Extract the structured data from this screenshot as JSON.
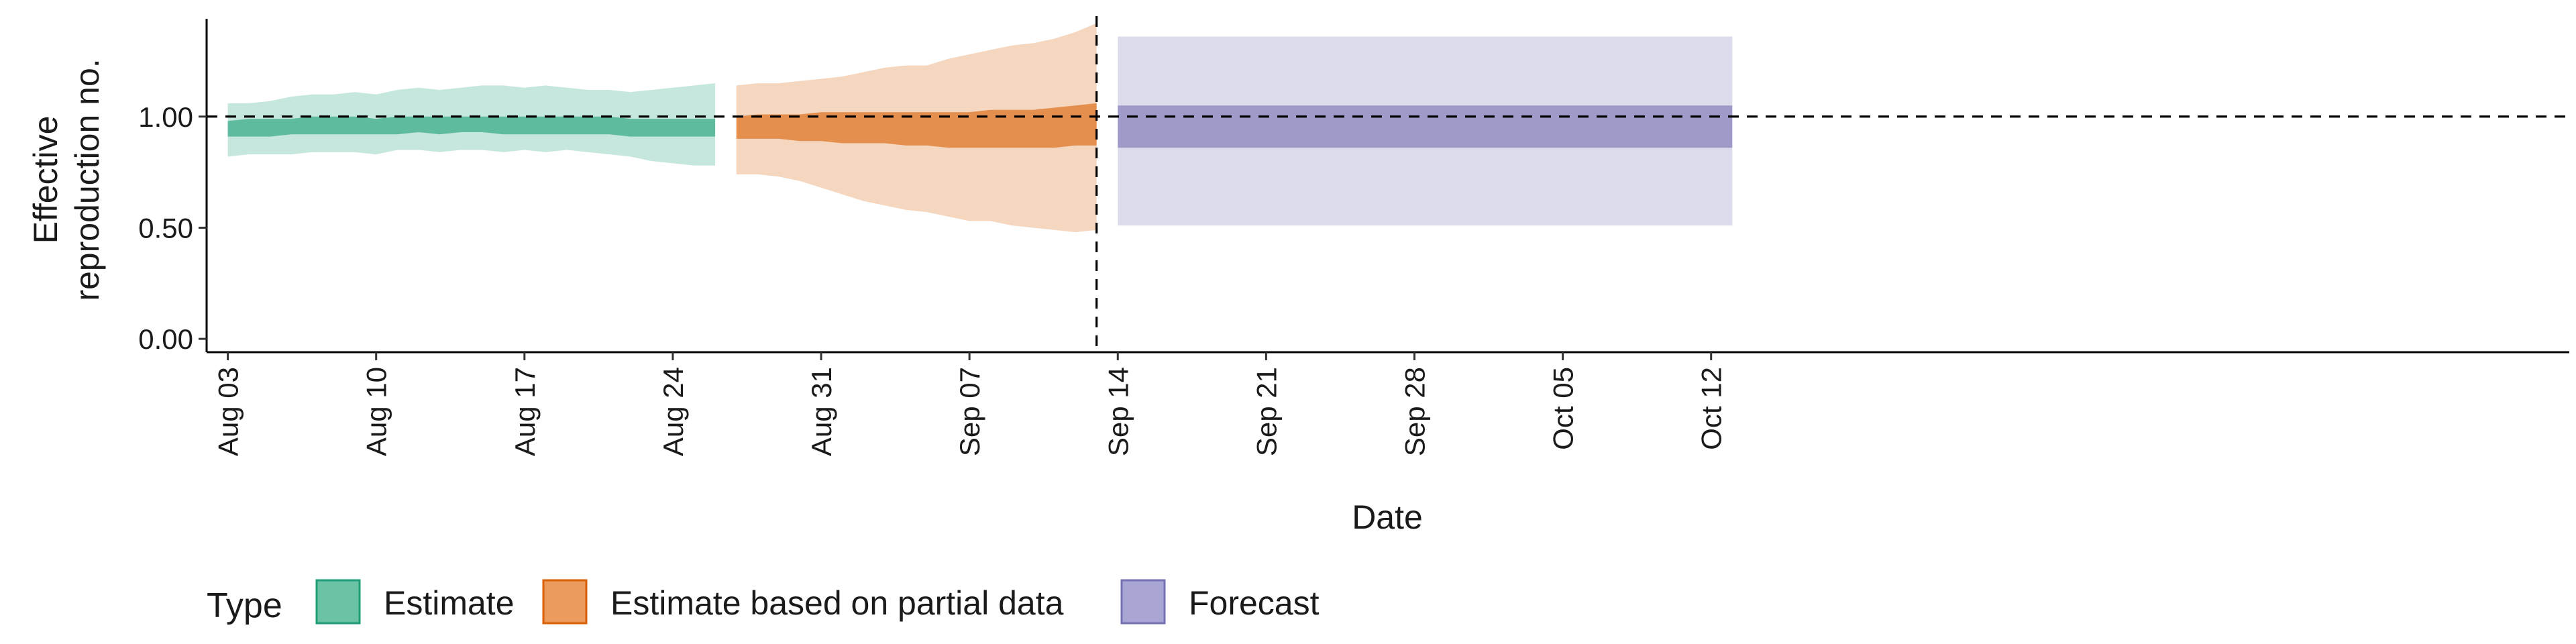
{
  "chart_data": {
    "type": "area",
    "title": "",
    "xlabel": "Date",
    "ylabel_lines": [
      "Effective",
      "reproduction no."
    ],
    "ylim": [
      -0.06,
      1.44
    ],
    "xlim": [
      -1.0,
      110.5
    ],
    "yticks": [
      {
        "v": 0.0,
        "label": "0.00"
      },
      {
        "v": 0.5,
        "label": "0.50"
      },
      {
        "v": 1.0,
        "label": "1.00"
      }
    ],
    "xticks": [
      {
        "day": 0,
        "label": "Aug 03"
      },
      {
        "day": 7,
        "label": "Aug 10"
      },
      {
        "day": 14,
        "label": "Aug 17"
      },
      {
        "day": 21,
        "label": "Aug 24"
      },
      {
        "day": 28,
        "label": "Aug 31"
      },
      {
        "day": 35,
        "label": "Sep 07"
      },
      {
        "day": 42,
        "label": "Sep 14"
      },
      {
        "day": 49,
        "label": "Sep 21"
      },
      {
        "day": 56,
        "label": "Sep 28"
      },
      {
        "day": 63,
        "label": "Oct 05"
      },
      {
        "day": 70,
        "label": "Oct 12"
      }
    ],
    "reference_line_y": 1.0,
    "forecast_start_day": 41,
    "legend": {
      "title": "Type",
      "position": "bottom-left",
      "items": [
        {
          "label": "Estimate",
          "fill": "#6cc2a4",
          "stroke": "#1b9e77"
        },
        {
          "label": "Estimate based on partial data",
          "fill": "#eb9b5e",
          "stroke": "#d95f02"
        },
        {
          "label": "Forecast",
          "fill": "#aaa6d4",
          "stroke": "#7570b3"
        }
      ]
    },
    "series": [
      {
        "name": "Estimate",
        "color": "#1b9e77",
        "outer_opacity": 0.25,
        "inner_opacity": 0.6,
        "x": [
          0,
          1,
          2,
          3,
          4,
          5,
          6,
          7,
          8,
          9,
          10,
          11,
          12,
          13,
          14,
          15,
          16,
          17,
          18,
          19,
          20,
          21,
          22,
          23
        ],
        "outer_lower": [
          0.82,
          0.83,
          0.83,
          0.83,
          0.84,
          0.84,
          0.84,
          0.83,
          0.85,
          0.85,
          0.84,
          0.85,
          0.85,
          0.84,
          0.85,
          0.84,
          0.85,
          0.84,
          0.83,
          0.82,
          0.8,
          0.79,
          0.78,
          0.78
        ],
        "outer_upper": [
          1.06,
          1.06,
          1.07,
          1.09,
          1.1,
          1.1,
          1.11,
          1.1,
          1.12,
          1.13,
          1.12,
          1.13,
          1.14,
          1.14,
          1.13,
          1.14,
          1.13,
          1.12,
          1.12,
          1.11,
          1.12,
          1.13,
          1.14,
          1.15
        ],
        "inner_lower": [
          0.91,
          0.91,
          0.91,
          0.92,
          0.92,
          0.92,
          0.92,
          0.92,
          0.92,
          0.93,
          0.92,
          0.93,
          0.93,
          0.92,
          0.92,
          0.92,
          0.92,
          0.92,
          0.92,
          0.91,
          0.91,
          0.91,
          0.91,
          0.91
        ],
        "inner_upper": [
          0.98,
          0.99,
          0.99,
          0.99,
          1.0,
          1.0,
          1.0,
          0.99,
          1.0,
          1.0,
          1.0,
          1.0,
          1.0,
          1.0,
          1.0,
          1.0,
          1.0,
          1.0,
          1.0,
          0.99,
          0.99,
          0.99,
          0.99,
          0.99
        ]
      },
      {
        "name": "Estimate based on partial data",
        "color": "#d95f02",
        "outer_opacity": 0.25,
        "inner_opacity": 0.6,
        "x": [
          24,
          25,
          26,
          27,
          28,
          29,
          30,
          31,
          32,
          33,
          34,
          35,
          36,
          37,
          38,
          39,
          40,
          41
        ],
        "outer_lower": [
          0.74,
          0.74,
          0.73,
          0.71,
          0.68,
          0.65,
          0.62,
          0.6,
          0.58,
          0.57,
          0.55,
          0.53,
          0.53,
          0.51,
          0.5,
          0.49,
          0.48,
          0.49
        ],
        "outer_upper": [
          1.14,
          1.15,
          1.15,
          1.16,
          1.17,
          1.18,
          1.2,
          1.22,
          1.23,
          1.23,
          1.26,
          1.28,
          1.3,
          1.32,
          1.33,
          1.35,
          1.38,
          1.42
        ],
        "inner_lower": [
          0.9,
          0.9,
          0.9,
          0.89,
          0.89,
          0.88,
          0.88,
          0.88,
          0.87,
          0.87,
          0.86,
          0.86,
          0.86,
          0.86,
          0.86,
          0.86,
          0.87,
          0.87
        ],
        "inner_upper": [
          1.0,
          1.01,
          1.01,
          1.01,
          1.02,
          1.02,
          1.02,
          1.02,
          1.02,
          1.02,
          1.02,
          1.02,
          1.03,
          1.03,
          1.03,
          1.04,
          1.05,
          1.06
        ]
      },
      {
        "name": "Forecast",
        "color": "#7570b3",
        "outer_opacity": 0.25,
        "inner_opacity": 0.6,
        "x": [
          42,
          71
        ],
        "outer_lower": [
          0.51,
          0.51
        ],
        "outer_upper": [
          1.36,
          1.36
        ],
        "inner_lower": [
          0.86,
          0.86
        ],
        "inner_upper": [
          1.05,
          1.05
        ]
      }
    ]
  }
}
